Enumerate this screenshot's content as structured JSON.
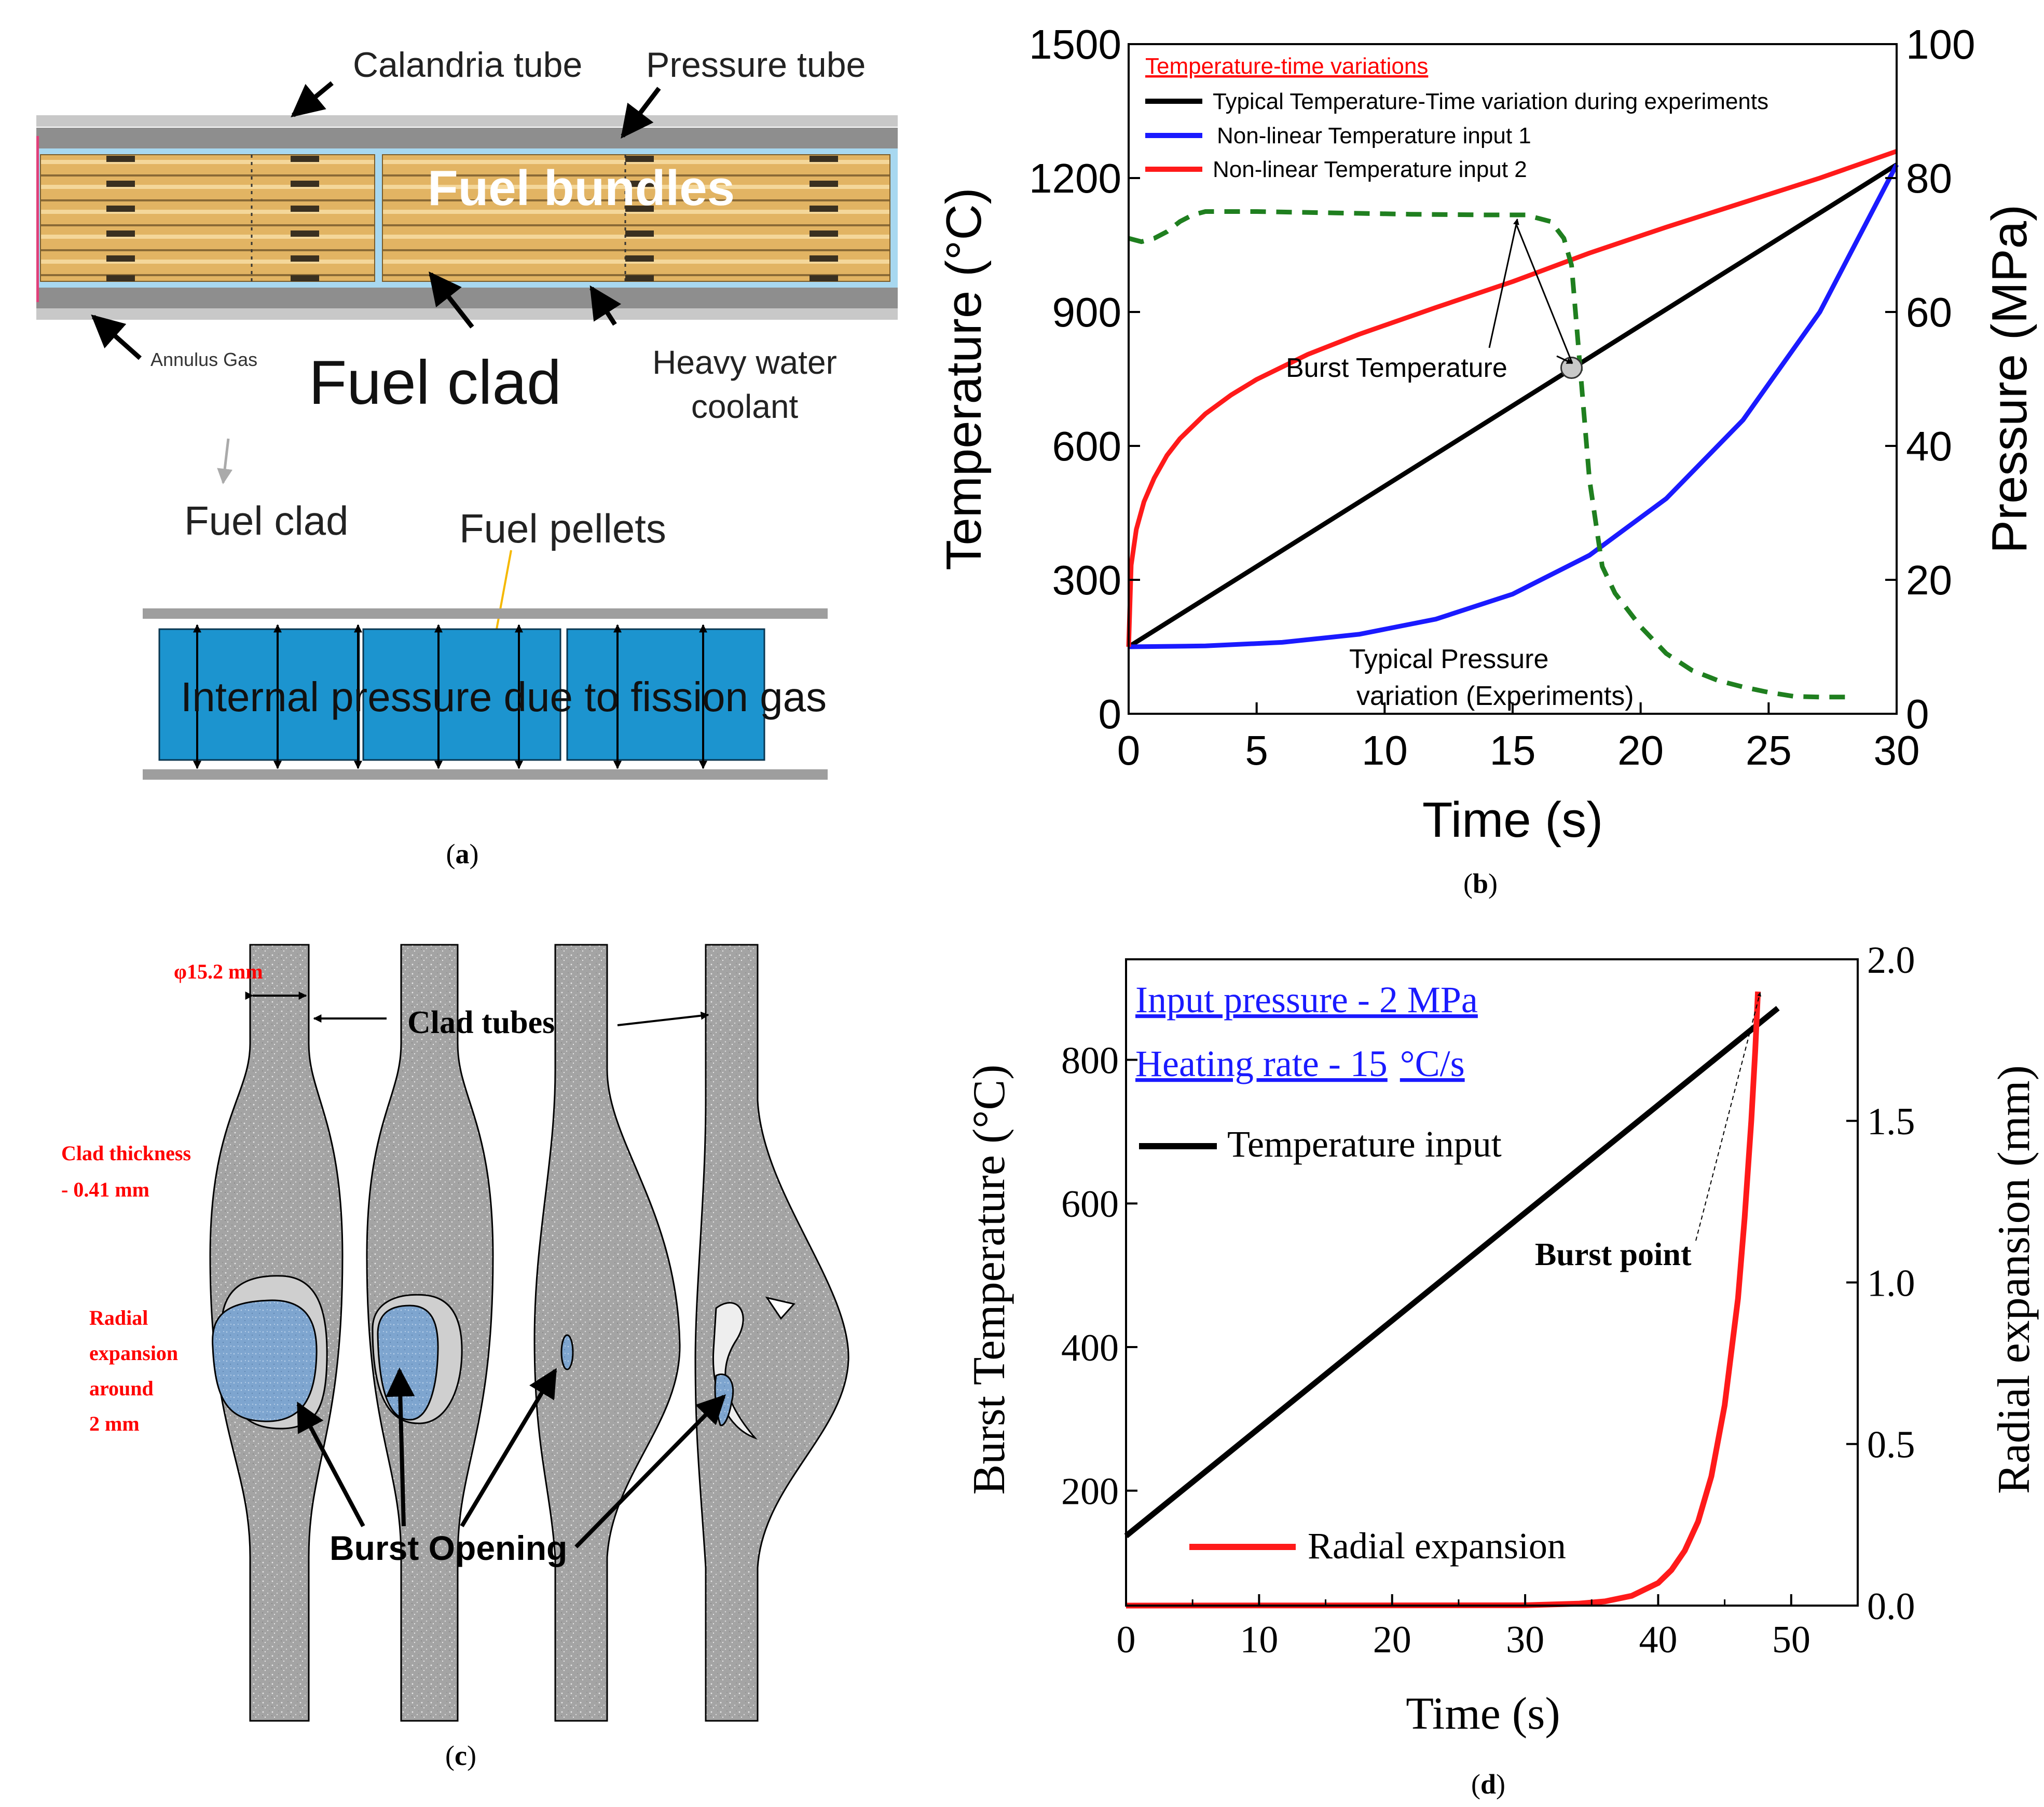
{
  "panels": {
    "a": {
      "caption_open": "(",
      "caption_letter": "a",
      "caption_close": ")",
      "labels": {
        "calandria_tube": "Calandria tube",
        "pressure_tube": "Pressure tube",
        "fuel_bundles": "Fuel bundles",
        "annulus_gas": "Annulus Gas",
        "fuel_clad_big": "Fuel clad",
        "heavy_water_line1": "Heavy water",
        "heavy_water_line2": "coolant",
        "fuel_clad_small": "Fuel clad",
        "fuel_pellets": "Fuel pellets",
        "internal_pressure": "Internal pressure due to fission gas"
      }
    },
    "c": {
      "caption_open": "(",
      "caption_letter": "c",
      "caption_close": ")",
      "labels": {
        "diameter": "φ15.2 mm",
        "clad_tubes": "Clad tubes",
        "clad_thickness_line1": "Clad thickness",
        "clad_thickness_line2": "- 0.41 mm",
        "radial_line1": "Radial",
        "radial_line2": "expansion",
        "radial_line3": "around",
        "radial_line4": "2 mm",
        "burst_opening": "Burst Opening"
      }
    }
  },
  "chart_data": [
    {
      "panel": "b",
      "type": "line",
      "caption_open": "(",
      "caption_letter": "b",
      "caption_close": ")",
      "xlabel": "Time (s)",
      "ylabel": "Temperature (°C)",
      "y2label": "Pressure (MPa)",
      "xlim": [
        0,
        30
      ],
      "ylim": [
        0,
        1500
      ],
      "y2lim": [
        0,
        100
      ],
      "xticks": [
        "0",
        "5",
        "10",
        "15",
        "20",
        "25",
        "30"
      ],
      "yticks": [
        "0",
        "300",
        "600",
        "900",
        "1200",
        "1500"
      ],
      "y2ticks": [
        "0",
        "20",
        "40",
        "60",
        "80",
        "100"
      ],
      "legend_title": "Temperature-time variations",
      "legend": [
        "Typical Temperature-Time variation during experiments",
        "Non-linear Temperature input 1",
        "Non-linear Temperature input 2"
      ],
      "colors": {
        "typical": "#000000",
        "input1": "#1a1aff",
        "input2": "#ff1a1a",
        "pressure": "#1f7f1f",
        "legend_title": "#ff0000"
      },
      "series": [
        {
          "name": "Typical Temperature-Time variation during experiments",
          "axis": "left",
          "x": [
            0,
            30
          ],
          "values": [
            150,
            1230
          ]
        },
        {
          "name": "Non-linear Temperature input 1",
          "axis": "left",
          "x": [
            0,
            3,
            6,
            9,
            12,
            15,
            18,
            21,
            24,
            27,
            30
          ],
          "values": [
            150,
            152,
            160,
            178,
            212,
            268,
            355,
            482,
            658,
            900,
            1230
          ]
        },
        {
          "name": "Non-linear Temperature input 2",
          "axis": "left",
          "x": [
            0,
            0.1,
            0.3,
            0.6,
            1,
            1.5,
            2,
            3,
            4,
            5,
            7,
            9,
            12,
            15,
            18,
            21,
            24,
            27,
            30
          ],
          "values": [
            150,
            333,
            413,
            475,
            528,
            579,
            616,
            672,
            714,
            749,
            805,
            850,
            910,
            968,
            1032,
            1090,
            1145,
            1200,
            1260
          ]
        },
        {
          "name": "Typical Pressure variation (Experiments)",
          "axis": "right",
          "x": [
            0,
            0.5,
            1,
            1.5,
            2,
            2.5,
            3,
            5,
            8,
            11,
            14,
            15.5,
            16.5,
            17,
            17.3,
            17.5,
            18,
            18.5,
            19,
            20,
            21,
            22,
            23,
            24,
            25,
            26,
            27,
            28
          ],
          "values": [
            71,
            70.5,
            71,
            72,
            73.5,
            74.5,
            75,
            75,
            74.8,
            74.6,
            74.5,
            74.5,
            73.5,
            71,
            67,
            58,
            35,
            22,
            18,
            13,
            9,
            6.5,
            5,
            4,
            3.2,
            2.6,
            2.5,
            2.5
          ]
        }
      ],
      "annotations": {
        "burst_temperature": "Burst Temperature",
        "pressure_line1": "Typical Pressure",
        "pressure_line2": "variation (Experiments)",
        "burst_point": {
          "x": 17.3,
          "y": 775
        }
      }
    },
    {
      "panel": "d",
      "type": "line",
      "caption_open": "(",
      "caption_letter": "d",
      "caption_close": ")",
      "xlabel": "Time (s)",
      "ylabel": "Burst Temperature (°C)",
      "y2label": "Radial expansion (mm)",
      "xlim": [
        0,
        55
      ],
      "ylim": [
        40,
        940
      ],
      "y2lim": [
        0,
        2.0
      ],
      "xticks": [
        "0",
        "10",
        "20",
        "30",
        "40",
        "50"
      ],
      "yticks": [
        "200",
        "400",
        "600",
        "800"
      ],
      "y2ticks": [
        "0.0",
        "0.5",
        "1.0",
        "1.5",
        "2.0"
      ],
      "legend": [
        "Temperature input",
        "Radial expansion"
      ],
      "colors": {
        "temperature": "#000000",
        "radial": "#ff1a1a",
        "note": "#1a1aff"
      },
      "notes": {
        "pressure": "Input pressure - 2 MPa",
        "heating_rate_a": "Heating rate - 15",
        "heating_rate_b": "°C/s"
      },
      "series": [
        {
          "name": "Temperature input",
          "axis": "left",
          "x": [
            0,
            49
          ],
          "values": [
            137,
            872
          ]
        },
        {
          "name": "Radial expansion",
          "axis": "right",
          "x": [
            0,
            30,
            34,
            36,
            38,
            40,
            41,
            42,
            43,
            44,
            45,
            46,
            46.5,
            47,
            47.3,
            47.5
          ],
          "values": [
            0,
            0.001,
            0.006,
            0.013,
            0.03,
            0.07,
            0.11,
            0.17,
            0.26,
            0.4,
            0.62,
            0.95,
            1.2,
            1.5,
            1.72,
            1.9
          ]
        }
      ],
      "annotations": {
        "burst_point": "Burst point"
      }
    }
  ]
}
